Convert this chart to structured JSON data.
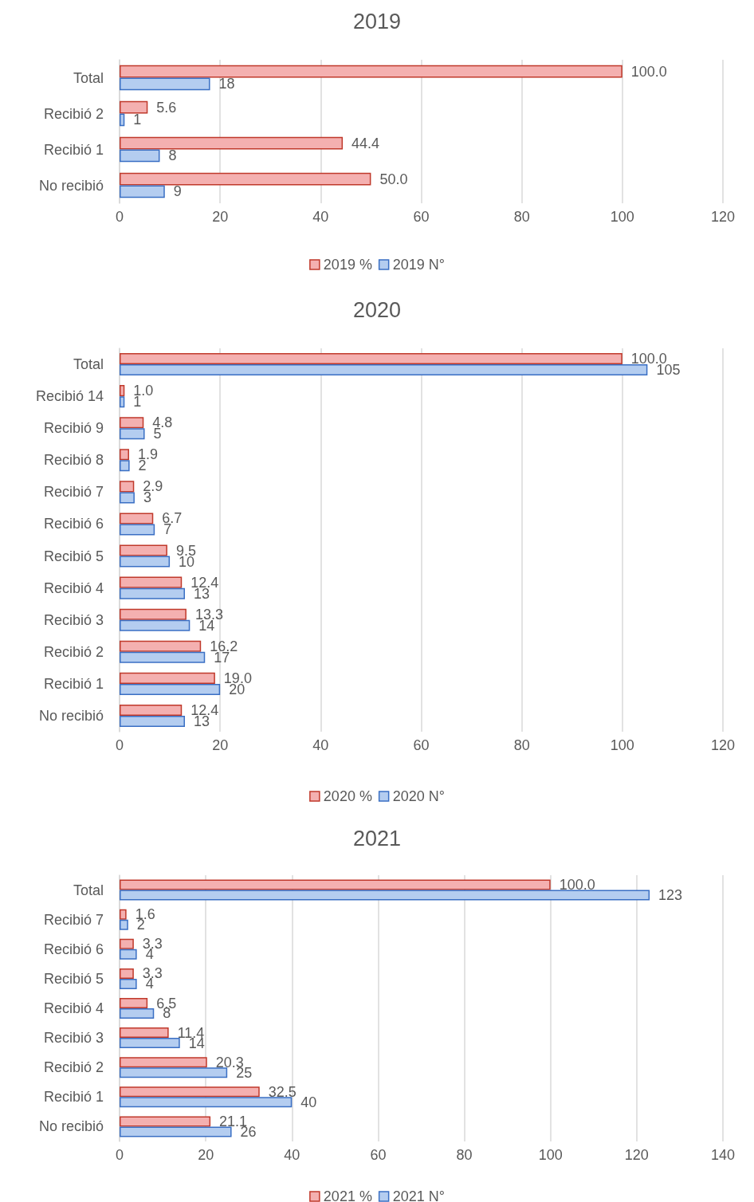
{
  "chart_data": [
    {
      "type": "bar",
      "orientation": "horizontal",
      "title": "2019",
      "categories": [
        "Total",
        "Recibió 2",
        "Recibió 1",
        "No recibió"
      ],
      "series": [
        {
          "name": "2019 %",
          "color": "#f4b0b0",
          "values": [
            100.0,
            5.6,
            44.4,
            50.0
          ],
          "value_labels": [
            "100.0",
            "5.6",
            "44.4",
            "50.0"
          ]
        },
        {
          "name": "2019 N°",
          "color": "#b4cdf0",
          "values": [
            18,
            1,
            8,
            9
          ],
          "value_labels": [
            "18",
            "1",
            "8",
            "9"
          ]
        }
      ],
      "xlim": [
        0,
        120
      ],
      "xticks": [
        0,
        20,
        40,
        60,
        80,
        100,
        120
      ],
      "grid": "x",
      "legend": "bottom"
    },
    {
      "type": "bar",
      "orientation": "horizontal",
      "title": "2020",
      "categories": [
        "Total",
        "Recibió 14",
        "Recibió 9",
        "Recibió 8",
        "Recibió 7",
        "Recibió 6",
        "Recibió 5",
        "Recibió 4",
        "Recibió 3",
        "Recibió 2",
        "Recibió 1",
        "No recibió"
      ],
      "series": [
        {
          "name": "2020 %",
          "color": "#f4b0b0",
          "values": [
            100.0,
            1.0,
            4.8,
            1.9,
            2.9,
            6.7,
            9.5,
            12.4,
            13.3,
            16.2,
            19.0,
            12.4
          ],
          "value_labels": [
            "100.0",
            "1.0",
            "4.8",
            "1.9",
            "2.9",
            "6.7",
            "9.5",
            "12.4",
            "13.3",
            "16.2",
            "19.0",
            "12.4"
          ]
        },
        {
          "name": "2020 N°",
          "color": "#b4cdf0",
          "values": [
            105,
            1,
            5,
            2,
            3,
            7,
            10,
            13,
            14,
            17,
            20,
            13
          ],
          "value_labels": [
            "105",
            "1",
            "5",
            "2",
            "3",
            "7",
            "10",
            "13",
            "14",
            "17",
            "20",
            "13"
          ]
        }
      ],
      "xlim": [
        0,
        120
      ],
      "xticks": [
        0,
        20,
        40,
        60,
        80,
        100,
        120
      ],
      "grid": "x",
      "legend": "bottom"
    },
    {
      "type": "bar",
      "orientation": "horizontal",
      "title": "2021",
      "categories": [
        "Total",
        "Recibió 7",
        "Recibió 6",
        "Recibió 5",
        "Recibió 4",
        "Recibió 3",
        "Recibió 2",
        "Recibió 1",
        "No recibió"
      ],
      "series": [
        {
          "name": "2021 %",
          "color": "#f4b0b0",
          "values": [
            100.0,
            1.6,
            3.3,
            3.3,
            6.5,
            11.4,
            20.3,
            32.5,
            21.1
          ],
          "value_labels": [
            "100.0",
            "1.6",
            "3.3",
            "3.3",
            "6.5",
            "11.4",
            "20.3",
            "32.5",
            "21.1"
          ]
        },
        {
          "name": "2021 N°",
          "color": "#b4cdf0",
          "values": [
            123,
            2,
            4,
            4,
            8,
            14,
            25,
            40,
            26
          ],
          "value_labels": [
            "123",
            "2",
            "4",
            "4",
            "8",
            "14",
            "25",
            "40",
            "26"
          ]
        }
      ],
      "xlim": [
        0,
        140
      ],
      "xticks": [
        0,
        20,
        40,
        60,
        80,
        100,
        120,
        140
      ],
      "grid": "x",
      "legend": "bottom"
    }
  ]
}
